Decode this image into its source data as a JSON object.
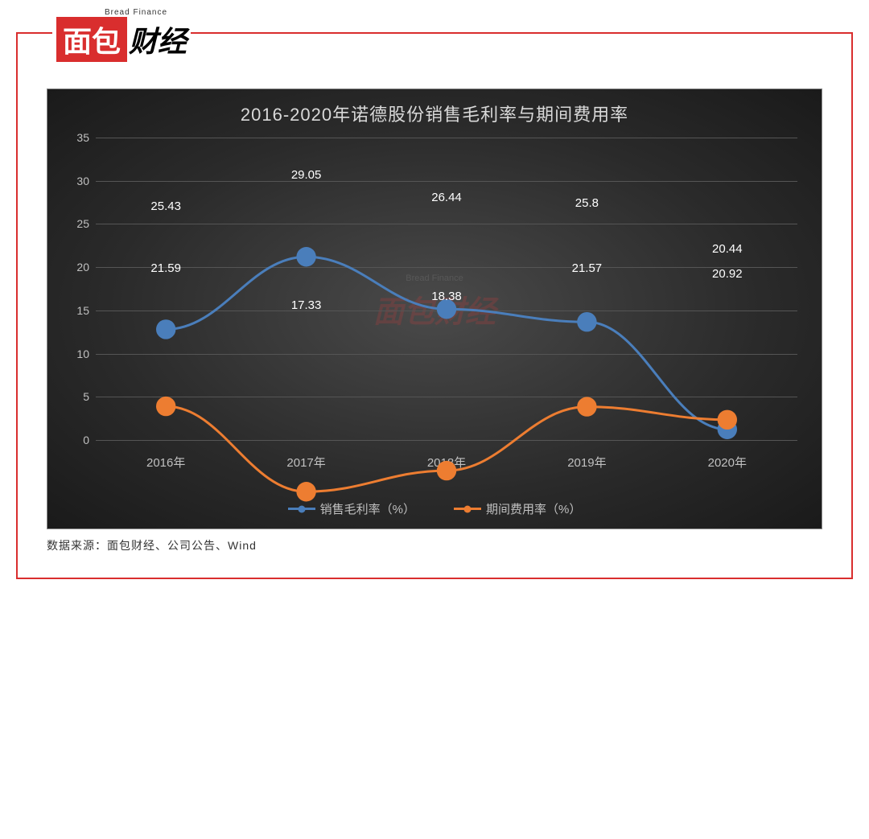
{
  "logo": {
    "subtitle": "Bread Finance",
    "red_text": "面包",
    "black_text": "财经"
  },
  "source": {
    "label": "数据来源：面包财经、公司公告、Wind"
  },
  "chart": {
    "type": "line",
    "title": "2016-2020年诺德股份销售毛利率与期间费用率",
    "title_fontsize": 22,
    "title_color": "#d9d9d9",
    "background": "radial-dark",
    "ylim": [
      0,
      35
    ],
    "ytick_step": 5,
    "yticks": [
      0,
      5,
      10,
      15,
      20,
      25,
      30,
      35
    ],
    "categories": [
      "2016年",
      "2017年",
      "2018年",
      "2019年",
      "2020年"
    ],
    "grid_color": "#555555",
    "axis_label_color": "#c0c0c0",
    "axis_fontsize": 14,
    "line_width": 3,
    "marker_radius": 6,
    "series": [
      {
        "name": "销售毛利率（%）",
        "color": "#4a7ebb",
        "values": [
          25.43,
          29.05,
          26.44,
          25.8,
          20.44
        ],
        "label_pos": [
          "above",
          "above",
          "above",
          "above",
          "above"
        ]
      },
      {
        "name": "期间费用率（%）",
        "color": "#ed7d31",
        "values": [
          21.59,
          17.33,
          18.38,
          21.57,
          20.92
        ],
        "label_pos": [
          "below",
          "below",
          "below",
          "below",
          "below"
        ]
      }
    ],
    "watermark": {
      "main": "面包财经",
      "sub": "Bread Finance"
    }
  }
}
